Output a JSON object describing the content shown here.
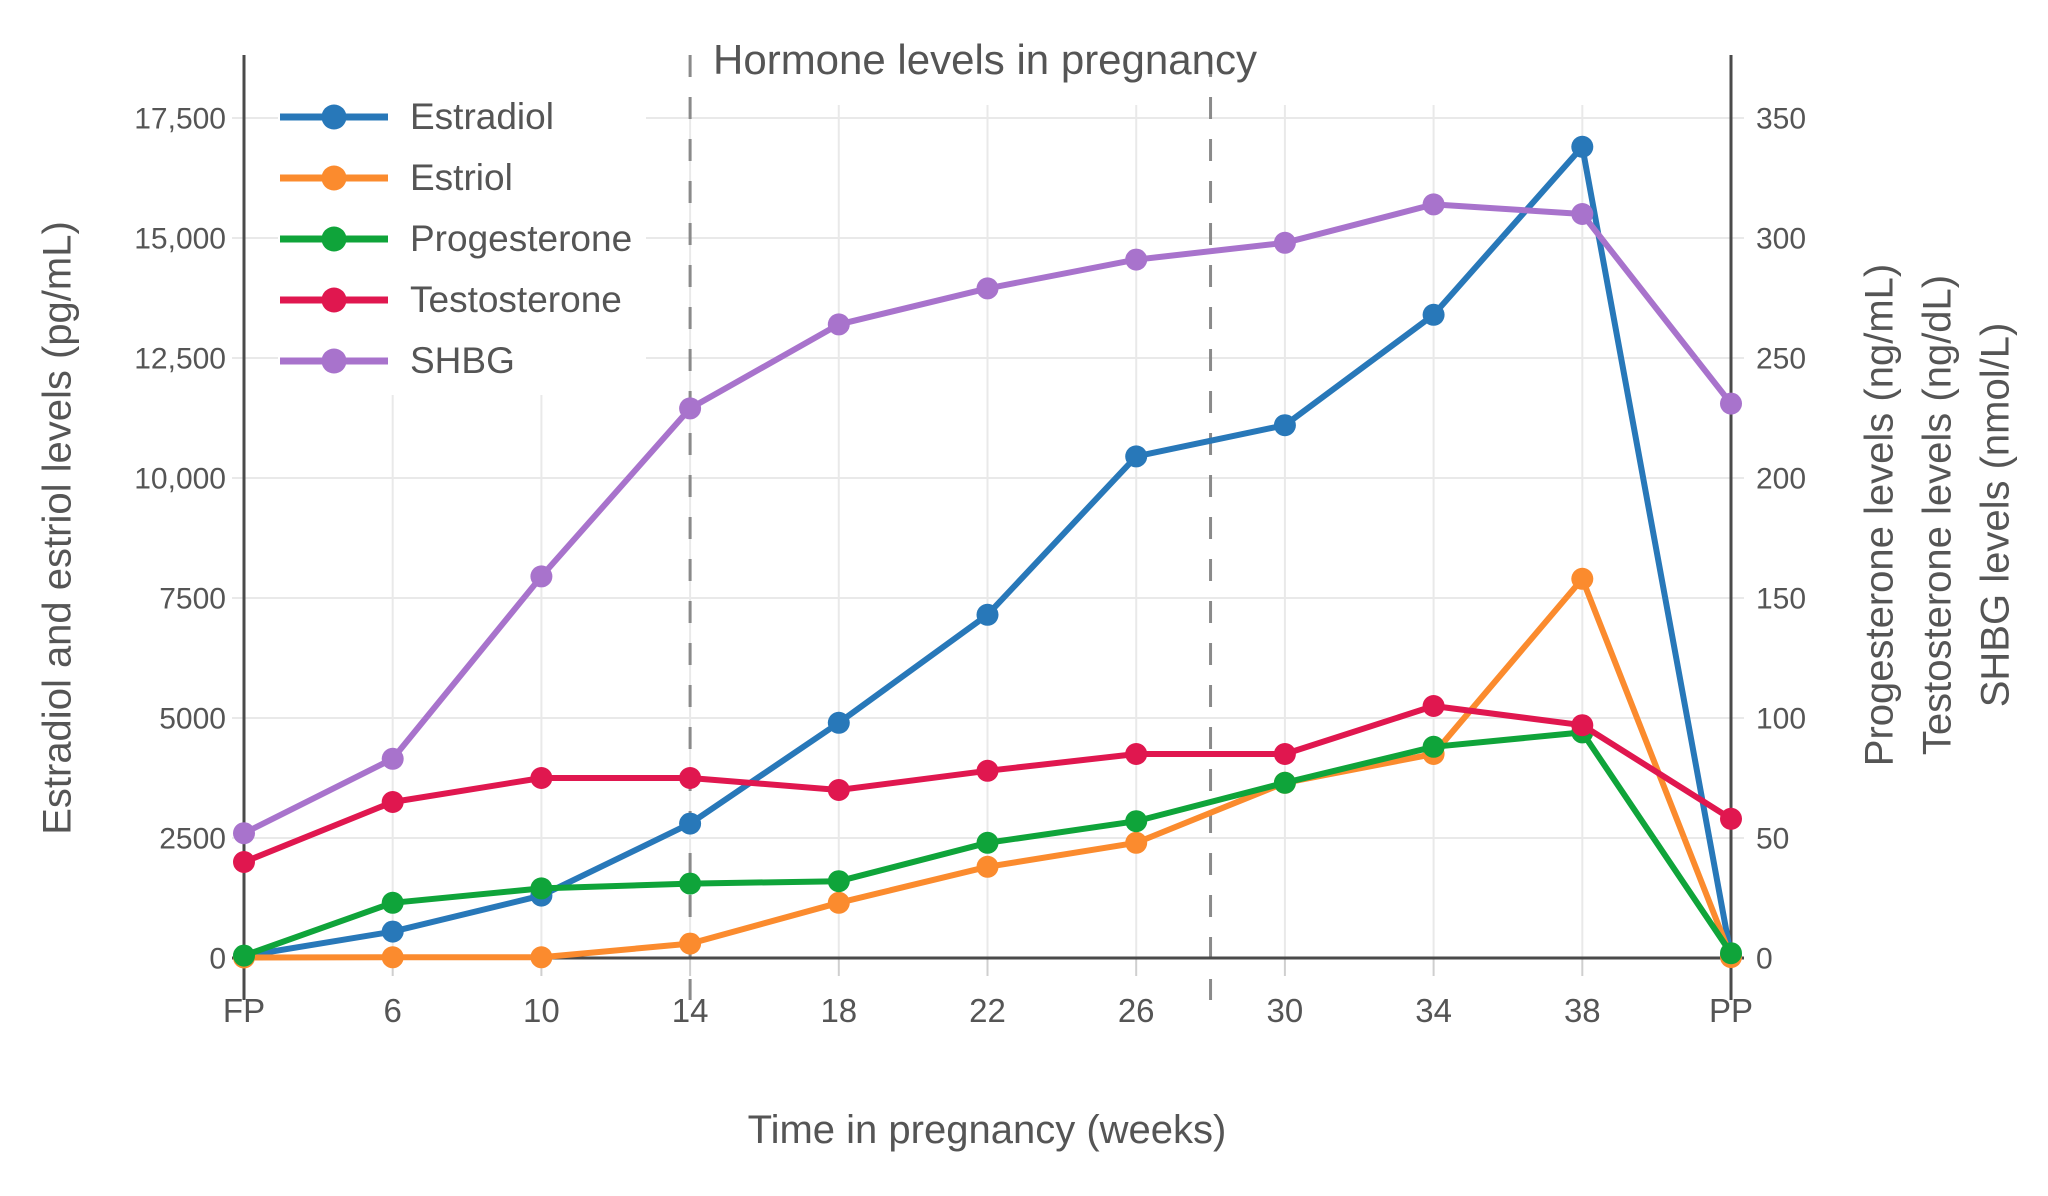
{
  "chart_data": {
    "type": "line",
    "title": "Hormone levels in pregnancy",
    "xlabel": "Time in pregnancy (weeks)",
    "ylabel_left": "Estradiol and estriol levels (pg/mL)",
    "ylabel_right": [
      "Progesterone levels (ng/mL)",
      "Testosterone levels (ng/dL)",
      "SHBG levels (nmol/L)"
    ],
    "categories": [
      "FP",
      "6",
      "10",
      "14",
      "18",
      "22",
      "26",
      "30",
      "34",
      "38",
      "PP"
    ],
    "left_axis": {
      "min": 0,
      "max": 17500,
      "tick_values": [
        0,
        2500,
        5000,
        7500,
        10000,
        12500,
        15000,
        17500
      ],
      "tick_labels": [
        "0",
        "2500",
        "5000",
        "7500",
        "10,000",
        "12,500",
        "15,000",
        "17,500"
      ]
    },
    "right_axis": {
      "min": 0,
      "max": 350,
      "tick_values": [
        0,
        50,
        100,
        150,
        200,
        250,
        300,
        350
      ],
      "tick_labels": [
        "0",
        "50",
        "100",
        "150",
        "200",
        "250",
        "300",
        "350"
      ]
    },
    "series": [
      {
        "name": "Estradiol",
        "axis": "left",
        "unit": "pg/mL",
        "color": "#2878B9",
        "values": [
          40,
          550,
          1300,
          2800,
          4900,
          7150,
          10450,
          11100,
          13400,
          16900,
          40
        ]
      },
      {
        "name": "Estriol",
        "axis": "left",
        "unit": "pg/mL",
        "color": "#FB8B2E",
        "values": [
          10,
          15,
          15,
          300,
          1150,
          1900,
          2400,
          3650,
          4250,
          7900,
          20
        ]
      },
      {
        "name": "Progesterone",
        "axis": "right",
        "unit": "ng/mL",
        "color": "#0FA43A",
        "values": [
          1,
          23,
          29,
          31,
          32,
          48,
          57,
          73,
          88,
          94,
          2
        ]
      },
      {
        "name": "Testosterone",
        "axis": "right",
        "unit": "ng/dL",
        "color": "#E0174F",
        "values": [
          40,
          65,
          75,
          75,
          70,
          78,
          85,
          85,
          105,
          97,
          58
        ]
      },
      {
        "name": "SHBG",
        "axis": "right",
        "unit": "nmol/L",
        "color": "#A873CC",
        "values": [
          52,
          83,
          159,
          229,
          264,
          279,
          291,
          298,
          314,
          310,
          231
        ]
      }
    ],
    "trimester_lines": {
      "weeks": [
        "14",
        "28"
      ],
      "style": "dashed"
    },
    "legend_position": "top-left-inside",
    "grid": true,
    "style_colors": {
      "text": "#555555",
      "grid": "#E9E9E9",
      "axis": "#4A4A4A",
      "dashed_line": "#8A8A8A",
      "background": "#FFFFFF"
    }
  }
}
